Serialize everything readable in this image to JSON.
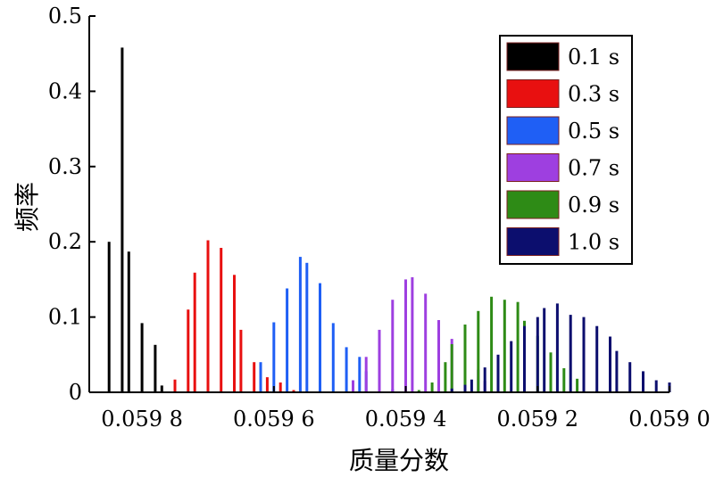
{
  "chart_data": {
    "type": "bar",
    "title": "",
    "xlabel": "质量分数",
    "ylabel": "频率",
    "x_reversed": true,
    "xlim": [
      0.059,
      0.05988
    ],
    "ylim": [
      0,
      0.5
    ],
    "xticks": [
      0.0598,
      0.0596,
      0.0594,
      0.0592,
      0.059
    ],
    "xtick_labels": [
      "0.059 8",
      "0.059 6",
      "0.059 4",
      "0.059 2",
      "0.059 0"
    ],
    "yticks": [
      0,
      0.1,
      0.2,
      0.3,
      0.4,
      0.5
    ],
    "ytick_labels": [
      "0",
      "0.1",
      "0.2",
      "0.3",
      "0.4",
      "0.5"
    ],
    "grid": false,
    "legend_position": "top-right",
    "series": [
      {
        "name": "0.1 s",
        "color": "#000000",
        "x": [
          0.05985,
          0.05983,
          0.05982,
          0.0598,
          0.05978,
          0.05977
        ],
        "values": [
          0.2,
          0.458,
          0.187,
          0.092,
          0.063,
          0.009
        ]
      },
      {
        "name": "0.3 s",
        "color": "#e81010",
        "x": [
          0.05975,
          0.05973,
          0.05972,
          0.0597,
          0.05968,
          0.05966,
          0.05965,
          0.05963,
          0.05961,
          0.05959,
          0.05957
        ],
        "values": [
          0.017,
          0.11,
          0.159,
          0.202,
          0.192,
          0.156,
          0.083,
          0.04,
          0.02,
          0.013,
          0.003
        ]
      },
      {
        "name": "0.5 s",
        "color": "#1f5ff5",
        "x": [
          0.05962,
          0.0596,
          0.05958,
          0.05956,
          0.05955,
          0.05953,
          0.05951,
          0.05949,
          0.05947,
          0.05946,
          0.05944,
          0.05942
        ],
        "values": [
          0.04,
          0.093,
          0.138,
          0.18,
          0.172,
          0.145,
          0.092,
          0.06,
          0.047,
          0.028,
          0.015,
          0.004
        ]
      },
      {
        "name": "0.7 s",
        "color": "#9e3fe0",
        "x": [
          0.05948,
          0.05946,
          0.05944,
          0.05942,
          0.0594,
          0.05939,
          0.05937,
          0.05935,
          0.05933,
          0.05931,
          0.05929,
          0.05928,
          0.05926
        ],
        "values": [
          0.016,
          0.047,
          0.083,
          0.123,
          0.15,
          0.153,
          0.131,
          0.096,
          0.071,
          0.05,
          0.03,
          0.015,
          0.004
        ]
      },
      {
        "name": "0.9 s",
        "color": "#2e8b16",
        "x": [
          0.05938,
          0.05936,
          0.05934,
          0.05933,
          0.05931,
          0.05929,
          0.05927,
          0.05925,
          0.05923,
          0.05922,
          0.0592,
          0.05918,
          0.05916,
          0.05914,
          0.05913,
          0.05911
        ],
        "values": [
          0.003,
          0.013,
          0.04,
          0.064,
          0.09,
          0.108,
          0.127,
          0.123,
          0.12,
          0.095,
          0.075,
          0.053,
          0.032,
          0.018,
          0.008,
          0.002
        ]
      },
      {
        "name": "1.0 s",
        "color": "#0c0e6e",
        "x": [
          0.05933,
          0.05931,
          0.0593,
          0.05928,
          0.05926,
          0.05924,
          0.05922,
          0.0592,
          0.05919,
          0.05917,
          0.05915,
          0.05913,
          0.05911,
          0.05909,
          0.05908,
          0.05906,
          0.05904,
          0.05902,
          0.059
        ],
        "values": [
          0.005,
          0.01,
          0.017,
          0.033,
          0.05,
          0.068,
          0.088,
          0.1,
          0.112,
          0.118,
          0.103,
          0.1,
          0.088,
          0.074,
          0.055,
          0.04,
          0.028,
          0.016,
          0.013
        ]
      }
    ]
  }
}
